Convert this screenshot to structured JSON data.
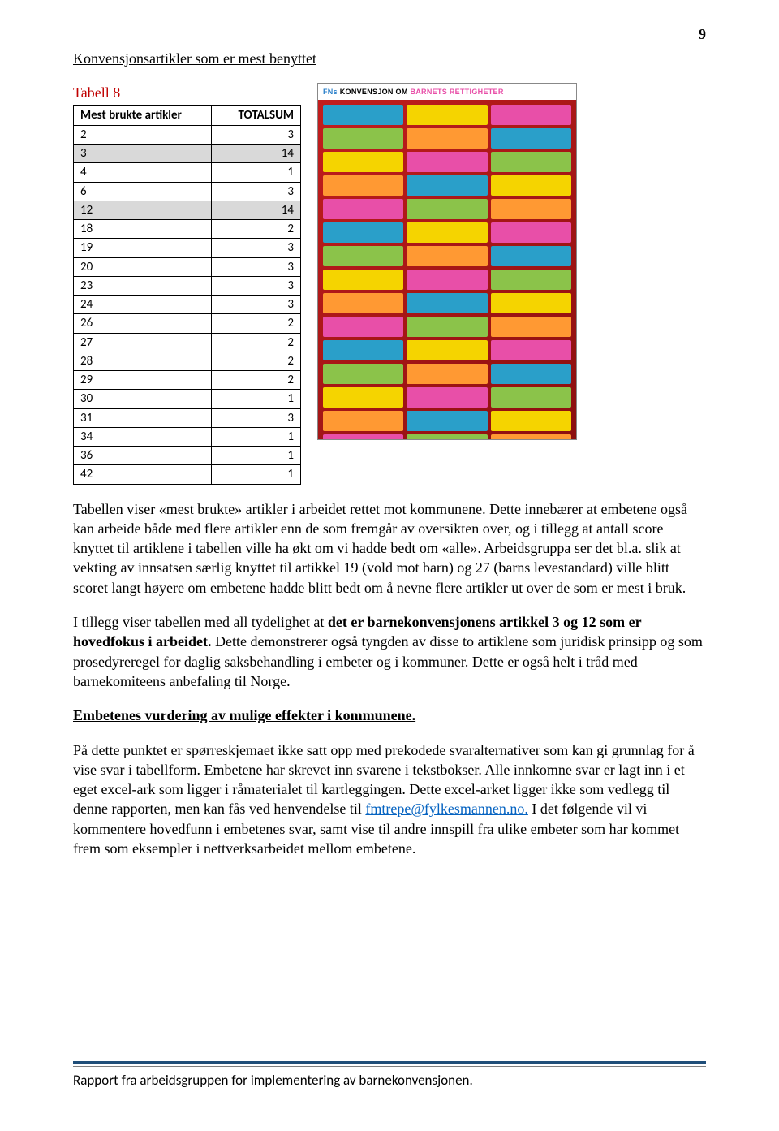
{
  "page_number": "9",
  "section_title": "Konvensjonsartikler som er mest benyttet",
  "table": {
    "label": "Tabell 8",
    "label_color": "#c00000",
    "headers": [
      "Mest brukte artikler",
      "TOTALSUM"
    ],
    "highlight_bg": "#d9d9d9",
    "rows": [
      {
        "a": "2",
        "b": "3",
        "hl": false
      },
      {
        "a": "3",
        "b": "14",
        "hl": true
      },
      {
        "a": "4",
        "b": "1",
        "hl": false
      },
      {
        "a": "6",
        "b": "3",
        "hl": false
      },
      {
        "a": "12",
        "b": "14",
        "hl": true
      },
      {
        "a": "18",
        "b": "2",
        "hl": false
      },
      {
        "a": "19",
        "b": "3",
        "hl": false
      },
      {
        "a": "20",
        "b": "3",
        "hl": false
      },
      {
        "a": "23",
        "b": "3",
        "hl": false
      },
      {
        "a": "24",
        "b": "3",
        "hl": false
      },
      {
        "a": "26",
        "b": "2",
        "hl": false
      },
      {
        "a": "27",
        "b": "2",
        "hl": false
      },
      {
        "a": "28",
        "b": "2",
        "hl": false
      },
      {
        "a": "29",
        "b": "2",
        "hl": false
      },
      {
        "a": "30",
        "b": "1",
        "hl": false
      },
      {
        "a": "31",
        "b": "3",
        "hl": false
      },
      {
        "a": "34",
        "b": "1",
        "hl": false
      },
      {
        "a": "36",
        "b": "1",
        "hl": false
      },
      {
        "a": "42",
        "b": "1",
        "hl": false
      }
    ]
  },
  "poster": {
    "title_prefix": "FNs",
    "title_mid": "KONVENSJON OM",
    "title_suffix": "BARNETS RETTIGHETER"
  },
  "para1": "Tabellen viser «mest brukte» artikler i arbeidet rettet mot kommunene. Dette innebærer at embetene også kan arbeide både med flere artikler enn de som fremgår av oversikten over, og i tillegg at antall score knyttet til artiklene i tabellen ville ha økt om vi hadde bedt om «alle». Arbeidsgruppa ser det bl.a. slik at vekting av innsatsen særlig knyttet til artikkel 19 (vold mot barn) og 27 (barns levestandard) ville blitt scoret langt høyere om embetene hadde blitt bedt om å nevne flere artikler ut over de som er mest i bruk.",
  "para2_pre": "I tillegg viser tabellen med all tydelighet at ",
  "para2_bold": "det er barnekonvensjonens artikkel 3 og 12 som er hovedfokus i arbeidet.",
  "para2_post": " Dette demonstrerer også tyngden av disse to artiklene som juridisk prinsipp og som prosedyreregel for daglig saksbehandling i embeter og i kommuner. Dette er også helt i tråd med barnekomiteens anbefaling til Norge.",
  "subheading": "Embetenes vurdering av mulige effekter i kommunene.",
  "para3_pre": "På dette punktet er spørreskjemaet ikke satt opp med prekodede svaralternativer som kan gi grunnlag for å vise svar i tabellform. Embetene har skrevet inn svarene i tekstbokser. Alle innkomne svar er lagt inn i et eget excel-ark som ligger i råmaterialet til kartleggingen. Dette excel-arket ligger ikke som vedlegg til denne rapporten, men kan fås ved henvendelse til ",
  "para3_email": "fmtrepe@fylkesmannen.no.",
  "para3_post": " I det følgende vil vi kommentere hovedfunn i embetenes svar, samt vise til andre innspill fra ulike embeter som har kommet frem som eksempler i nettverksarbeidet mellom embetene.",
  "footer": "Rapport fra arbeidsgruppen for implementering av barnekonvensjonen."
}
